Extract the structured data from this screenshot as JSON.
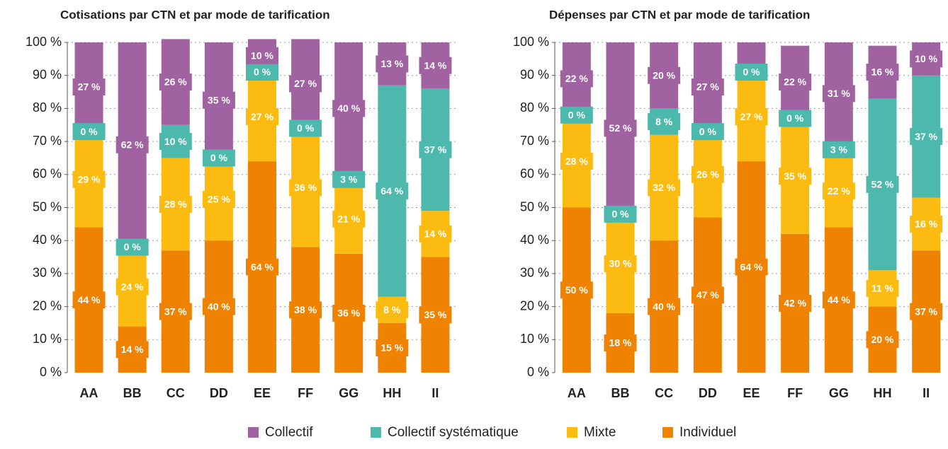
{
  "chart_data": [
    {
      "type": "stacked_bar",
      "title": "Cotisations par CTN et par mode de tarification",
      "categories": [
        "AA",
        "BB",
        "CC",
        "DD",
        "EE",
        "FF",
        "GG",
        "HH",
        "II"
      ],
      "ylim": [
        0,
        100
      ],
      "yticks": [
        {
          "value": 0,
          "label": "0 %"
        },
        {
          "value": 10,
          "label": "10 %"
        },
        {
          "value": 20,
          "label": "20 %"
        },
        {
          "value": 30,
          "label": "30 %"
        },
        {
          "value": 40,
          "label": "40 %"
        },
        {
          "value": 50,
          "label": "50 %"
        },
        {
          "value": 60,
          "label": "60 %"
        },
        {
          "value": 70,
          "label": "70 %"
        },
        {
          "value": 80,
          "label": "80 %"
        },
        {
          "value": 90,
          "label": "90 %"
        },
        {
          "value": 100,
          "label": "100 %"
        }
      ],
      "grid": true,
      "series": [
        {
          "name": "Individuel",
          "color": "#ef8200",
          "values": [
            44,
            14,
            37,
            40,
            64,
            38,
            36,
            15,
            35
          ],
          "value_labels": [
            "44 %",
            "14 %",
            "37 %",
            "40 %",
            "64 %",
            "38 %",
            "36 %",
            "15 %",
            "35 %"
          ]
        },
        {
          "name": "Mixte",
          "color": "#fbbb10",
          "values": [
            29,
            24,
            28,
            25,
            27,
            36,
            21,
            8,
            14
          ],
          "value_labels": [
            "29 %",
            "24 %",
            "28 %",
            "25 %",
            "27 %",
            "36 %",
            "21 %",
            "8 %",
            "14 %"
          ]
        },
        {
          "name": "Collectif systématique",
          "color": "#4db8ac",
          "values": [
            0,
            0,
            10,
            0,
            0,
            0,
            3,
            64,
            37
          ],
          "value_labels": [
            "0 %",
            "0 %",
            "10 %",
            "0 %",
            "0 %",
            "0 %",
            "3 %",
            "64 %",
            "37 %"
          ]
        },
        {
          "name": "Collectif",
          "color": "#a062a0",
          "values": [
            27,
            62,
            26,
            35,
            10,
            27,
            40,
            13,
            14
          ],
          "value_labels": [
            "27 %",
            "62 %",
            "26 %",
            "35 %",
            "10 %",
            "27 %",
            "40 %",
            "13 %",
            "14 %"
          ]
        }
      ]
    },
    {
      "type": "stacked_bar",
      "title": "Dépenses par CTN et par mode de tarification",
      "categories": [
        "AA",
        "BB",
        "CC",
        "DD",
        "EE",
        "FF",
        "GG",
        "HH",
        "II"
      ],
      "ylim": [
        0,
        100
      ],
      "yticks": [
        {
          "value": 0,
          "label": "0 %"
        },
        {
          "value": 10,
          "label": "10 %"
        },
        {
          "value": 20,
          "label": "20 %"
        },
        {
          "value": 30,
          "label": "30 %"
        },
        {
          "value": 40,
          "label": "40 %"
        },
        {
          "value": 50,
          "label": "50 %"
        },
        {
          "value": 60,
          "label": "60 %"
        },
        {
          "value": 70,
          "label": "70 %"
        },
        {
          "value": 80,
          "label": "80 %"
        },
        {
          "value": 90,
          "label": "90 %"
        },
        {
          "value": 100,
          "label": "100 %"
        }
      ],
      "grid": true,
      "series": [
        {
          "name": "Individuel",
          "color": "#ef8200",
          "values": [
            50,
            18,
            40,
            47,
            64,
            42,
            44,
            20,
            37
          ],
          "value_labels": [
            "50 %",
            "18 %",
            "40 %",
            "47 %",
            "64 %",
            "42 %",
            "44 %",
            "20 %",
            "37 %"
          ]
        },
        {
          "name": "Mixte",
          "color": "#fbbb10",
          "values": [
            28,
            30,
            32,
            26,
            27,
            35,
            22,
            11,
            16
          ],
          "value_labels": [
            "28 %",
            "30 %",
            "32 %",
            "26 %",
            "27 %",
            "35 %",
            "22 %",
            "11 %",
            "16 %"
          ]
        },
        {
          "name": "Collectif systématique",
          "color": "#4db8ac",
          "values": [
            0,
            0,
            8,
            0,
            0,
            0,
            3,
            52,
            37
          ],
          "value_labels": [
            "0 %",
            "0 %",
            "8 %",
            "0 %",
            "0 %",
            "0 %",
            "3 %",
            "52 %",
            "37 %"
          ]
        },
        {
          "name": "Collectif",
          "color": "#a062a0",
          "values": [
            22,
            52,
            20,
            27,
            9,
            22,
            31,
            16,
            10
          ],
          "value_labels": [
            "22 %",
            "52 %",
            "20 %",
            "27 %",
            null,
            "22 %",
            "31 %",
            "16 %",
            "10 %"
          ]
        }
      ]
    }
  ]
}
